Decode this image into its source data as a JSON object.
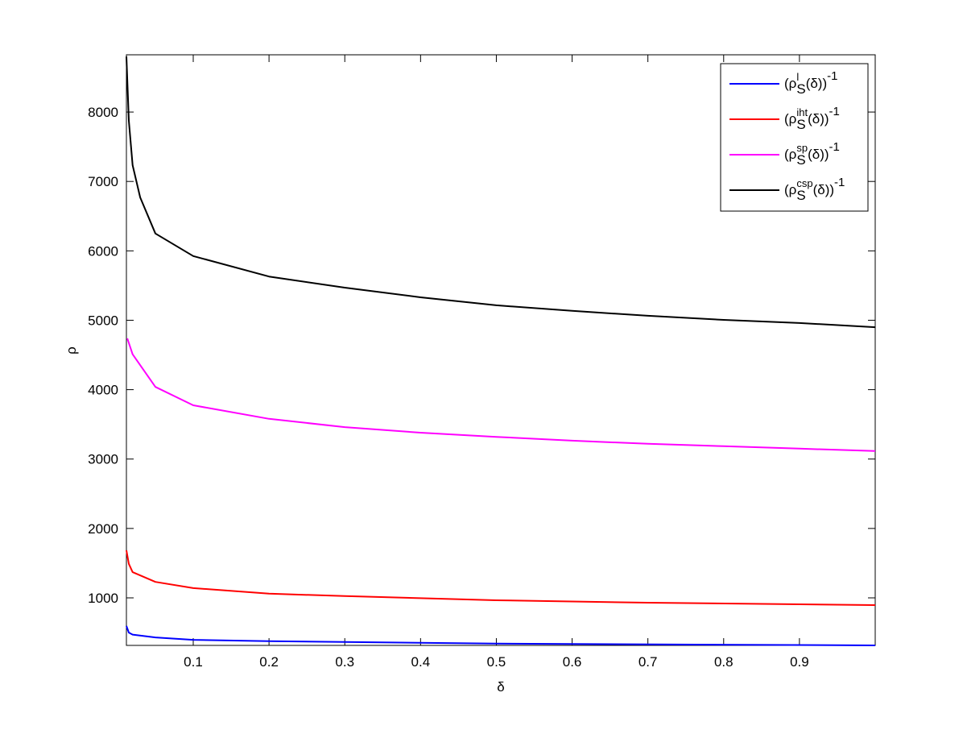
{
  "chart_data": {
    "type": "line",
    "title": "",
    "xlabel": "δ",
    "ylabel": "ρ",
    "xlim": [
      0.0118,
      1.0
    ],
    "ylim": [
      315,
      8825
    ],
    "xticks": [
      0.1,
      0.2,
      0.3,
      0.4,
      0.5,
      0.6,
      0.7,
      0.8,
      0.9
    ],
    "xtick_labels": [
      "0.1",
      "0.2",
      "0.3",
      "0.4",
      "0.5",
      "0.6",
      "0.7",
      "0.8",
      "0.9"
    ],
    "yticks": [
      1000,
      2000,
      3000,
      4000,
      5000,
      6000,
      7000,
      8000
    ],
    "ytick_labels": [
      "1000",
      "2000",
      "3000",
      "4000",
      "5000",
      "6000",
      "7000",
      "8000"
    ],
    "grid": false,
    "legend_position": "top-right",
    "series": [
      {
        "name": "(ρ_S^l(δ))^-1",
        "legend": {
          "base": "(ρ",
          "sup": "l",
          "sub": "S",
          "tail": "(δ))",
          "exp": "-1"
        },
        "color": "#0000ff",
        "x": [
          0.0118,
          0.015,
          0.02,
          0.05,
          0.1,
          0.2,
          0.5,
          1.0
        ],
        "y": [
          595,
          500,
          470,
          430,
          395,
          375,
          340,
          315
        ]
      },
      {
        "name": "(ρ_S^iht(δ))^-1",
        "legend": {
          "base": "(ρ",
          "sup": "iht",
          "sub": "S",
          "tail": "(δ))",
          "exp": "-1"
        },
        "color": "#ff0000",
        "x": [
          0.0118,
          0.015,
          0.02,
          0.05,
          0.1,
          0.2,
          0.3,
          0.5,
          0.7,
          1.0
        ],
        "y": [
          1685,
          1490,
          1370,
          1230,
          1140,
          1060,
          1025,
          965,
          930,
          895
        ]
      },
      {
        "name": "(ρ_S^sp(δ))^-1",
        "legend": {
          "base": "(ρ",
          "sup": "sp",
          "sub": "S",
          "tail": "(δ))",
          "exp": "-1"
        },
        "color": "#ff00ff",
        "x": [
          0.013,
          0.02,
          0.05,
          0.1,
          0.2,
          0.3,
          0.4,
          0.5,
          0.6,
          0.7,
          0.8,
          0.9,
          1.0
        ],
        "y": [
          4740,
          4510,
          4040,
          3775,
          3580,
          3460,
          3380,
          3320,
          3265,
          3220,
          3185,
          3150,
          3115
        ]
      },
      {
        "name": "(ρ_S^csp(δ))^-1",
        "legend": {
          "base": "(ρ",
          "sup": "csp",
          "sub": "S",
          "tail": "(δ))",
          "exp": "-1"
        },
        "color": "#000000",
        "x": [
          0.0118,
          0.015,
          0.02,
          0.03,
          0.05,
          0.1,
          0.2,
          0.3,
          0.4,
          0.5,
          0.6,
          0.7,
          0.8,
          0.9,
          1.0
        ],
        "y": [
          8800,
          7875,
          7235,
          6770,
          6250,
          5925,
          5630,
          5470,
          5330,
          5215,
          5135,
          5065,
          5005,
          4960,
          4900
        ]
      }
    ]
  }
}
